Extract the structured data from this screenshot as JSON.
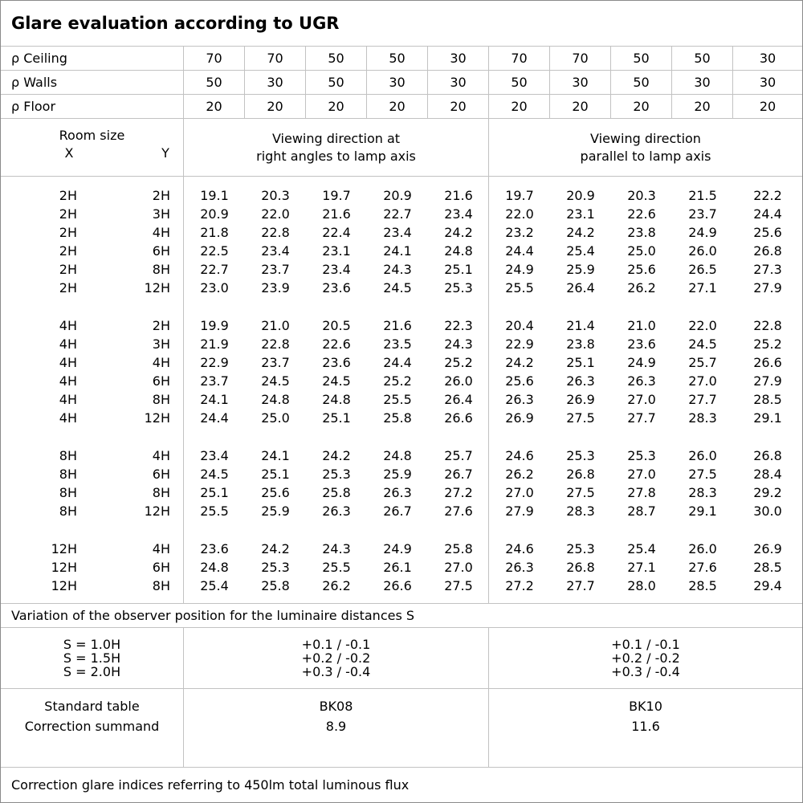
{
  "title": "Glare evaluation according to UGR",
  "colors": {
    "background": "#ffffff",
    "text": "#000000",
    "grid_line": "#c2c2c2",
    "outer_border": "#8a8a8a"
  },
  "reflectances": {
    "rows": [
      {
        "label": "ρ Ceiling",
        "values": [
          "70",
          "70",
          "50",
          "50",
          "30",
          "70",
          "70",
          "50",
          "50",
          "30"
        ]
      },
      {
        "label": "ρ Walls",
        "values": [
          "50",
          "30",
          "50",
          "30",
          "30",
          "50",
          "30",
          "50",
          "30",
          "30"
        ]
      },
      {
        "label": "ρ Floor",
        "values": [
          "20",
          "20",
          "20",
          "20",
          "20",
          "20",
          "20",
          "20",
          "20",
          "20"
        ]
      }
    ]
  },
  "header": {
    "room_size_label": "Room size",
    "x_label": "X",
    "y_label": "Y",
    "section1_title_lines": [
      "Viewing direction at",
      "right angles to lamp axis"
    ],
    "section2_title_lines": [
      "Viewing direction",
      "parallel to lamp axis"
    ]
  },
  "data_groups": [
    {
      "rows": [
        {
          "x": "2H",
          "y": "2H",
          "values": [
            "19.1",
            "20.3",
            "19.7",
            "20.9",
            "21.6",
            "19.7",
            "20.9",
            "20.3",
            "21.5",
            "22.2"
          ]
        },
        {
          "x": "2H",
          "y": "3H",
          "values": [
            "20.9",
            "22.0",
            "21.6",
            "22.7",
            "23.4",
            "22.0",
            "23.1",
            "22.6",
            "23.7",
            "24.4"
          ]
        },
        {
          "x": "2H",
          "y": "4H",
          "values": [
            "21.8",
            "22.8",
            "22.4",
            "23.4",
            "24.2",
            "23.2",
            "24.2",
            "23.8",
            "24.9",
            "25.6"
          ]
        },
        {
          "x": "2H",
          "y": "6H",
          "values": [
            "22.5",
            "23.4",
            "23.1",
            "24.1",
            "24.8",
            "24.4",
            "25.4",
            "25.0",
            "26.0",
            "26.8"
          ]
        },
        {
          "x": "2H",
          "y": "8H",
          "values": [
            "22.7",
            "23.7",
            "23.4",
            "24.3",
            "25.1",
            "24.9",
            "25.9",
            "25.6",
            "26.5",
            "27.3"
          ]
        },
        {
          "x": "2H",
          "y": "12H",
          "values": [
            "23.0",
            "23.9",
            "23.6",
            "24.5",
            "25.3",
            "25.5",
            "26.4",
            "26.2",
            "27.1",
            "27.9"
          ]
        }
      ]
    },
    {
      "rows": [
        {
          "x": "4H",
          "y": "2H",
          "values": [
            "19.9",
            "21.0",
            "20.5",
            "21.6",
            "22.3",
            "20.4",
            "21.4",
            "21.0",
            "22.0",
            "22.8"
          ]
        },
        {
          "x": "4H",
          "y": "3H",
          "values": [
            "21.9",
            "22.8",
            "22.6",
            "23.5",
            "24.3",
            "22.9",
            "23.8",
            "23.6",
            "24.5",
            "25.2"
          ]
        },
        {
          "x": "4H",
          "y": "4H",
          "values": [
            "22.9",
            "23.7",
            "23.6",
            "24.4",
            "25.2",
            "24.2",
            "25.1",
            "24.9",
            "25.7",
            "26.6"
          ]
        },
        {
          "x": "4H",
          "y": "6H",
          "values": [
            "23.7",
            "24.5",
            "24.5",
            "25.2",
            "26.0",
            "25.6",
            "26.3",
            "26.3",
            "27.0",
            "27.9"
          ]
        },
        {
          "x": "4H",
          "y": "8H",
          "values": [
            "24.1",
            "24.8",
            "24.8",
            "25.5",
            "26.4",
            "26.3",
            "26.9",
            "27.0",
            "27.7",
            "28.5"
          ]
        },
        {
          "x": "4H",
          "y": "12H",
          "values": [
            "24.4",
            "25.0",
            "25.1",
            "25.8",
            "26.6",
            "26.9",
            "27.5",
            "27.7",
            "28.3",
            "29.1"
          ]
        }
      ]
    },
    {
      "rows": [
        {
          "x": "8H",
          "y": "4H",
          "values": [
            "23.4",
            "24.1",
            "24.2",
            "24.8",
            "25.7",
            "24.6",
            "25.3",
            "25.3",
            "26.0",
            "26.8"
          ]
        },
        {
          "x": "8H",
          "y": "6H",
          "values": [
            "24.5",
            "25.1",
            "25.3",
            "25.9",
            "26.7",
            "26.2",
            "26.8",
            "27.0",
            "27.5",
            "28.4"
          ]
        },
        {
          "x": "8H",
          "y": "8H",
          "values": [
            "25.1",
            "25.6",
            "25.8",
            "26.3",
            "27.2",
            "27.0",
            "27.5",
            "27.8",
            "28.3",
            "29.2"
          ]
        },
        {
          "x": "8H",
          "y": "12H",
          "values": [
            "25.5",
            "25.9",
            "26.3",
            "26.7",
            "27.6",
            "27.9",
            "28.3",
            "28.7",
            "29.1",
            "30.0"
          ]
        }
      ]
    },
    {
      "rows": [
        {
          "x": "12H",
          "y": "4H",
          "values": [
            "23.6",
            "24.2",
            "24.3",
            "24.9",
            "25.8",
            "24.6",
            "25.3",
            "25.4",
            "26.0",
            "26.9"
          ]
        },
        {
          "x": "12H",
          "y": "6H",
          "values": [
            "24.8",
            "25.3",
            "25.5",
            "26.1",
            "27.0",
            "26.3",
            "26.8",
            "27.1",
            "27.6",
            "28.5"
          ]
        },
        {
          "x": "12H",
          "y": "8H",
          "values": [
            "25.4",
            "25.8",
            "26.2",
            "26.6",
            "27.5",
            "27.2",
            "27.7",
            "28.0",
            "28.5",
            "29.4"
          ]
        }
      ]
    }
  ],
  "variation_note": "Variation of the observer position for the luminaire distances S",
  "variation": {
    "labels": [
      "S = 1.0H",
      "S = 1.5H",
      "S = 2.0H"
    ],
    "section1": [
      "+0.1 / -0.1",
      "+0.2 / -0.2",
      "+0.3 / -0.4"
    ],
    "section2": [
      "+0.1 / -0.1",
      "+0.2 / -0.2",
      "+0.3 / -0.4"
    ]
  },
  "summary": {
    "row1_label": "Standard table",
    "row2_label": "Correction summand",
    "section1": {
      "standard_table": "BK08",
      "correction_summand": "8.9"
    },
    "section2": {
      "standard_table": "BK10",
      "correction_summand": "11.6"
    }
  },
  "footer_note": "Correction glare indices referring to 450lm total luminous flux"
}
